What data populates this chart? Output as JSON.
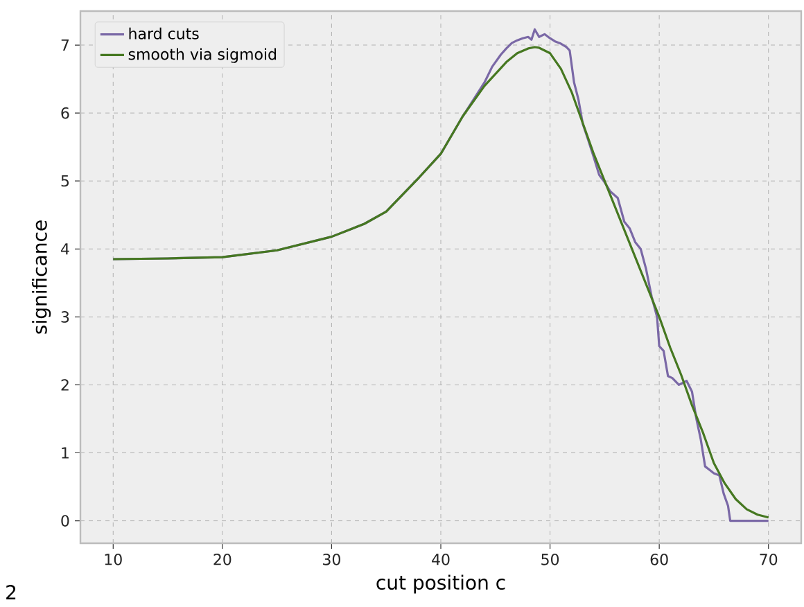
{
  "chart_data": {
    "type": "line",
    "xlabel": "cut position c",
    "ylabel": "significance",
    "annotations": [
      "2"
    ],
    "xlim": [
      7,
      73
    ],
    "ylim": [
      -0.33,
      7.5
    ],
    "xticks": [
      10,
      20,
      30,
      40,
      50,
      60,
      70
    ],
    "yticks": [
      0,
      1,
      2,
      3,
      4,
      5,
      6,
      7
    ],
    "grid": true,
    "legend": "top left",
    "line_style": "solid",
    "marker": "none",
    "series": [
      {
        "name": "hard cuts",
        "color": "#7a68a6",
        "x": [
          10,
          15,
          20,
          25,
          30,
          33,
          35,
          38,
          40,
          42,
          43,
          44,
          44.7,
          45.5,
          46,
          46.5,
          47,
          47.5,
          48,
          48.3,
          48.6,
          49,
          49.5,
          50,
          50.5,
          51,
          51.5,
          51.8,
          52.2,
          52.6,
          53,
          53.5,
          54,
          54.5,
          55,
          55.5,
          56.2,
          56.8,
          57.3,
          57.8,
          58.3,
          58.8,
          59.3,
          59.8,
          60,
          60.4,
          60.8,
          61.2,
          61.8,
          62.5,
          63,
          63.4,
          63.8,
          64.2,
          64.6,
          65,
          65.5,
          65.9,
          66.3,
          66.5,
          67,
          68,
          69,
          70
        ],
        "values": [
          3.85,
          3.86,
          3.88,
          3.98,
          4.18,
          4.37,
          4.55,
          5.05,
          5.4,
          5.95,
          6.2,
          6.45,
          6.68,
          6.86,
          6.95,
          7.03,
          7.07,
          7.1,
          7.12,
          7.08,
          7.23,
          7.12,
          7.16,
          7.1,
          7.05,
          7.02,
          6.97,
          6.92,
          6.45,
          6.2,
          5.84,
          5.6,
          5.35,
          5.09,
          4.98,
          4.85,
          4.75,
          4.4,
          4.3,
          4.1,
          4.0,
          3.7,
          3.3,
          3.0,
          2.57,
          2.5,
          2.13,
          2.1,
          2.0,
          2.06,
          1.9,
          1.5,
          1.2,
          0.8,
          0.75,
          0.7,
          0.67,
          0.4,
          0.22,
          0,
          0,
          0,
          0,
          0
        ]
      },
      {
        "name": "smooth via sigmoid",
        "color": "#467821",
        "x": [
          10,
          15,
          20,
          25,
          30,
          33,
          35,
          38,
          40,
          42,
          44,
          46,
          47,
          48,
          48.6,
          49,
          50,
          51,
          52,
          53,
          54,
          55,
          56,
          57,
          58,
          59,
          60,
          61,
          62,
          63,
          64,
          65,
          66,
          67,
          68,
          69,
          70
        ],
        "values": [
          3.85,
          3.86,
          3.88,
          3.98,
          4.18,
          4.37,
          4.55,
          5.05,
          5.4,
          5.95,
          6.4,
          6.75,
          6.88,
          6.95,
          6.97,
          6.96,
          6.88,
          6.65,
          6.3,
          5.85,
          5.4,
          5.0,
          4.6,
          4.2,
          3.8,
          3.4,
          3.0,
          2.55,
          2.15,
          1.7,
          1.3,
          0.85,
          0.55,
          0.32,
          0.17,
          0.09,
          0.05
        ]
      }
    ]
  }
}
